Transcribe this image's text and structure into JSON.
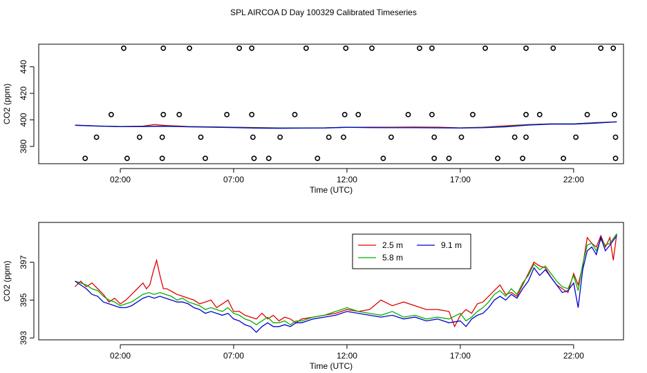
{
  "page_title": "SPL AIRCOA D  Day 100329  Calibrated Timeseries",
  "chart_data": [
    {
      "type": "scatter",
      "title": "SPL AIRCOA D  Day 100329  Calibrated Timeseries",
      "xlabel": "Time (UTC)",
      "ylabel": "CO2 (ppm)",
      "xlim": [
        -1.6,
        24.2
      ],
      "ylim": [
        367,
        457
      ],
      "xticks": [
        2,
        7,
        12,
        17,
        22
      ],
      "xtick_labels": [
        "02:00",
        "07:00",
        "12:00",
        "17:00",
        "22:00"
      ],
      "yticks": [
        380,
        400,
        420,
        440
      ],
      "ytick_labels": [
        "380",
        "400",
        "420",
        "440"
      ],
      "colors": {
        "s1": "#e00000",
        "s2": "#00b000",
        "s3": "#0000d0"
      },
      "calibration_points": {
        "x": [
          2.15,
          3.9,
          5.05,
          7.25,
          7.8,
          10.2,
          11.95,
          13.1,
          15.2,
          15.75,
          18.1,
          19.9,
          21.1,
          23.2,
          23.75,
          1.6,
          3.9,
          4.6,
          6.7,
          7.8,
          9.7,
          11.9,
          12.5,
          14.7,
          15.75,
          17.55,
          19.9,
          20.5,
          22.6,
          23.8,
          0.95,
          2.85,
          3.85,
          5.55,
          7.85,
          9.05,
          11.2,
          11.85,
          13.95,
          15.85,
          17.05,
          19.4,
          19.9,
          22.1,
          23.85,
          0.45,
          2.3,
          3.85,
          5.75,
          7.9,
          8.55,
          10.7,
          13.6,
          15.85,
          16.5,
          18.65,
          19.75,
          21.55,
          23.85
        ],
        "y": [
          454,
          454,
          454,
          454,
          454,
          454,
          454,
          454,
          454,
          454,
          454,
          454,
          454,
          454,
          454,
          404,
          404,
          404,
          404,
          404,
          404,
          404,
          404,
          404,
          404,
          404,
          404,
          404,
          404,
          404,
          387,
          387,
          387,
          387,
          387,
          387,
          387,
          387,
          387,
          387,
          387,
          387,
          387,
          387,
          387,
          371,
          371,
          371,
          371,
          371,
          371,
          371,
          371,
          371,
          371,
          371,
          371,
          371,
          371
        ]
      },
      "series": [
        {
          "name": "2.5 m",
          "x": [
            0,
            0.5,
            1,
            2,
            3,
            3.5,
            4,
            5,
            6,
            7,
            8,
            9,
            10,
            11,
            12,
            13,
            14,
            15,
            16,
            17,
            18,
            19,
            20,
            21,
            22,
            23,
            23.9
          ],
          "values": [
            396,
            395.8,
            395.4,
            395,
            395.3,
            396.5,
            395.8,
            395,
            394.8,
            394.5,
            394.2,
            394,
            394,
            394,
            394.5,
            394.5,
            394.5,
            394.6,
            394.5,
            394,
            394.5,
            395.5,
            396.5,
            397,
            397,
            398,
            398.5
          ]
        },
        {
          "name": "5.8 m",
          "x": [
            0,
            1,
            2,
            3,
            4,
            5,
            6,
            7,
            8,
            9,
            10,
            11,
            12,
            13,
            14,
            15,
            16,
            17,
            18,
            19,
            20,
            21,
            22,
            23,
            23.9
          ],
          "values": [
            396,
            395.4,
            395,
            395.1,
            395.3,
            394.9,
            394.6,
            394.4,
            394,
            393.9,
            393.9,
            394,
            394.5,
            394.3,
            394.2,
            394.2,
            394.1,
            394,
            394.3,
            395,
            396.3,
            397,
            397,
            397.8,
            398.5
          ]
        },
        {
          "name": "9.1 m",
          "x": [
            0,
            1,
            2,
            3,
            4,
            5,
            6,
            7,
            8,
            9,
            10,
            11,
            12,
            13,
            14,
            15,
            16,
            17,
            18,
            19,
            20,
            21,
            22,
            23,
            23.9
          ],
          "values": [
            396,
            395.3,
            394.9,
            395,
            395.2,
            394.8,
            394.5,
            394.2,
            393.8,
            393.7,
            393.8,
            393.9,
            394.4,
            394.2,
            394.1,
            394.1,
            394,
            393.9,
            394.1,
            394.8,
            396.1,
            396.8,
            396.8,
            397.6,
            398.5
          ]
        }
      ]
    },
    {
      "type": "line",
      "xlabel": "Time (UTC)",
      "ylabel": "CO2 (ppm)",
      "xlim": [
        -1.6,
        24.2
      ],
      "ylim": [
        392.9,
        399.1
      ],
      "xticks": [
        2,
        7,
        12,
        17,
        22
      ],
      "xtick_labels": [
        "02:00",
        "07:00",
        "12:00",
        "17:00",
        "22:00"
      ],
      "yticks": [
        393,
        395,
        397
      ],
      "ytick_labels": [
        "393",
        "395",
        "397"
      ],
      "legend_position": "top-center-right",
      "series": [
        {
          "name": "2.5 m",
          "color": "#e00000",
          "x": [
            0,
            0.25,
            0.5,
            0.75,
            1,
            1.25,
            1.5,
            1.75,
            2,
            2.25,
            2.5,
            2.75,
            3,
            3.15,
            3.3,
            3.45,
            3.6,
            3.75,
            3.9,
            4.05,
            4.2,
            4.35,
            4.5,
            4.75,
            5,
            5.25,
            5.5,
            5.75,
            6,
            6.25,
            6.5,
            6.75,
            7,
            7.25,
            7.5,
            7.75,
            8,
            8.25,
            8.5,
            8.75,
            9,
            9.25,
            9.5,
            9.75,
            10,
            10.5,
            11,
            11.5,
            12,
            12.5,
            13,
            13.5,
            14,
            14.5,
            15,
            15.5,
            16,
            16.5,
            16.75,
            17,
            17.25,
            17.5,
            17.75,
            18,
            18.25,
            18.5,
            18.75,
            19,
            19.25,
            19.5,
            19.75,
            20,
            20.25,
            20.5,
            20.75,
            21,
            21.25,
            21.5,
            21.75,
            22,
            22.2,
            22.4,
            22.6,
            22.8,
            23,
            23.2,
            23.4,
            23.6,
            23.75,
            23.9
          ],
          "values": [
            395.7,
            396,
            395.7,
            395.9,
            395.6,
            395.3,
            394.9,
            395.1,
            394.8,
            395,
            395.3,
            395.6,
            395.9,
            395.6,
            395.8,
            396.5,
            397.1,
            396.3,
            395.6,
            395.6,
            395.5,
            395.4,
            395.3,
            395.2,
            395.1,
            395,
            394.8,
            394.9,
            395,
            394.6,
            394.8,
            395,
            394.4,
            394.4,
            394.2,
            394.1,
            394,
            394.3,
            394,
            394.2,
            393.9,
            394.1,
            394,
            393.8,
            394,
            394.1,
            394.2,
            394.3,
            394.5,
            394.4,
            394.5,
            395,
            394.7,
            394.9,
            394.7,
            394.5,
            394.5,
            394.4,
            393.6,
            394.2,
            394.5,
            394.3,
            394.8,
            394.9,
            395.2,
            395.5,
            395.8,
            395.3,
            395.4,
            395.2,
            395.8,
            396.4,
            397,
            396.8,
            396.7,
            396.2,
            395.8,
            395.6,
            395.4,
            396.4,
            395.8,
            396.8,
            398.3,
            398,
            397.8,
            398.4,
            397.8,
            398.3,
            397.1,
            398.5
          ]
        },
        {
          "name": "5.8 m",
          "color": "#00b000",
          "x": [
            0,
            0.25,
            0.5,
            0.75,
            1,
            1.25,
            1.5,
            1.75,
            2,
            2.25,
            2.5,
            2.75,
            3,
            3.25,
            3.5,
            3.75,
            4,
            4.25,
            4.5,
            4.75,
            5,
            5.25,
            5.5,
            5.75,
            6,
            6.25,
            6.5,
            6.75,
            7,
            7.25,
            7.5,
            7.75,
            8,
            8.25,
            8.5,
            8.75,
            9,
            9.25,
            9.5,
            9.75,
            10,
            10.5,
            11,
            11.5,
            12,
            12.5,
            13,
            13.5,
            14,
            14.5,
            15,
            15.5,
            16,
            16.5,
            17,
            17.25,
            17.5,
            17.75,
            18,
            18.25,
            18.5,
            18.75,
            19,
            19.25,
            19.5,
            19.75,
            20,
            20.25,
            20.5,
            20.75,
            21,
            21.25,
            21.5,
            21.75,
            22,
            22.2,
            22.4,
            22.6,
            22.8,
            23,
            23.2,
            23.4,
            23.6,
            23.9
          ],
          "values": [
            396,
            395.9,
            395.8,
            395.6,
            395.5,
            395.2,
            395,
            394.9,
            394.7,
            394.8,
            394.9,
            395.1,
            395.3,
            395.4,
            395.3,
            395.4,
            395.3,
            395.2,
            395,
            395.1,
            394.9,
            394.8,
            394.7,
            394.5,
            394.6,
            394.5,
            394.4,
            394.6,
            394.3,
            394.2,
            394,
            393.9,
            393.7,
            393.9,
            394.1,
            393.8,
            393.8,
            393.9,
            393.7,
            393.9,
            393.9,
            394.1,
            394.2,
            394.4,
            394.6,
            394.4,
            394.3,
            394.2,
            394.4,
            394.1,
            394.2,
            394,
            394.1,
            394,
            394.3,
            393.9,
            394.1,
            394.4,
            394.6,
            394.9,
            395.3,
            395.5,
            395.2,
            395.6,
            395.3,
            395.9,
            396.3,
            396.9,
            396.6,
            396.8,
            396.4,
            396,
            395.7,
            395.6,
            396.3,
            395.5,
            396.9,
            397.9,
            398,
            397.6,
            398.2,
            397.9,
            398,
            398.5
          ]
        },
        {
          "name": "9.1 m",
          "color": "#0000d0",
          "x": [
            0,
            0.25,
            0.5,
            0.75,
            1,
            1.25,
            1.5,
            1.75,
            2,
            2.25,
            2.5,
            2.75,
            3,
            3.25,
            3.5,
            3.75,
            4,
            4.25,
            4.5,
            4.75,
            5,
            5.25,
            5.5,
            5.75,
            6,
            6.25,
            6.5,
            6.75,
            7,
            7.25,
            7.5,
            7.75,
            8,
            8.25,
            8.5,
            8.75,
            9,
            9.25,
            9.5,
            9.75,
            10,
            10.5,
            11,
            11.5,
            12,
            12.5,
            13,
            13.5,
            14,
            14.5,
            15,
            15.5,
            16,
            16.5,
            17,
            17.25,
            17.5,
            17.75,
            18,
            18.25,
            18.5,
            18.75,
            19,
            19.25,
            19.5,
            19.75,
            20,
            20.25,
            20.5,
            20.75,
            21,
            21.25,
            21.5,
            21.75,
            22,
            22.2,
            22.4,
            22.6,
            22.8,
            23,
            23.2,
            23.4,
            23.6,
            23.9
          ],
          "values": [
            396,
            395.8,
            395.6,
            395.3,
            395.2,
            394.9,
            394.8,
            394.7,
            394.6,
            394.6,
            394.7,
            394.9,
            395.1,
            395.2,
            395.1,
            395.2,
            395.1,
            395,
            394.9,
            394.9,
            394.8,
            394.6,
            394.5,
            394.3,
            394.4,
            394.3,
            394.2,
            394.3,
            394,
            393.9,
            393.7,
            393.6,
            393.3,
            393.6,
            393.8,
            393.6,
            393.6,
            393.7,
            393.6,
            393.8,
            393.8,
            394,
            394.1,
            394.2,
            394.4,
            394.3,
            394.2,
            394.1,
            394.2,
            394,
            394.1,
            393.9,
            394,
            393.8,
            393.9,
            393.6,
            394,
            394.2,
            394.3,
            394.6,
            395,
            395.2,
            395,
            395.3,
            395.1,
            395.6,
            396,
            396.7,
            396.3,
            396.6,
            396.2,
            395.8,
            395.4,
            395.5,
            395.9,
            394.6,
            396.6,
            397.6,
            397.8,
            397.4,
            398.3,
            397.6,
            397.9,
            398.4
          ]
        }
      ]
    }
  ]
}
